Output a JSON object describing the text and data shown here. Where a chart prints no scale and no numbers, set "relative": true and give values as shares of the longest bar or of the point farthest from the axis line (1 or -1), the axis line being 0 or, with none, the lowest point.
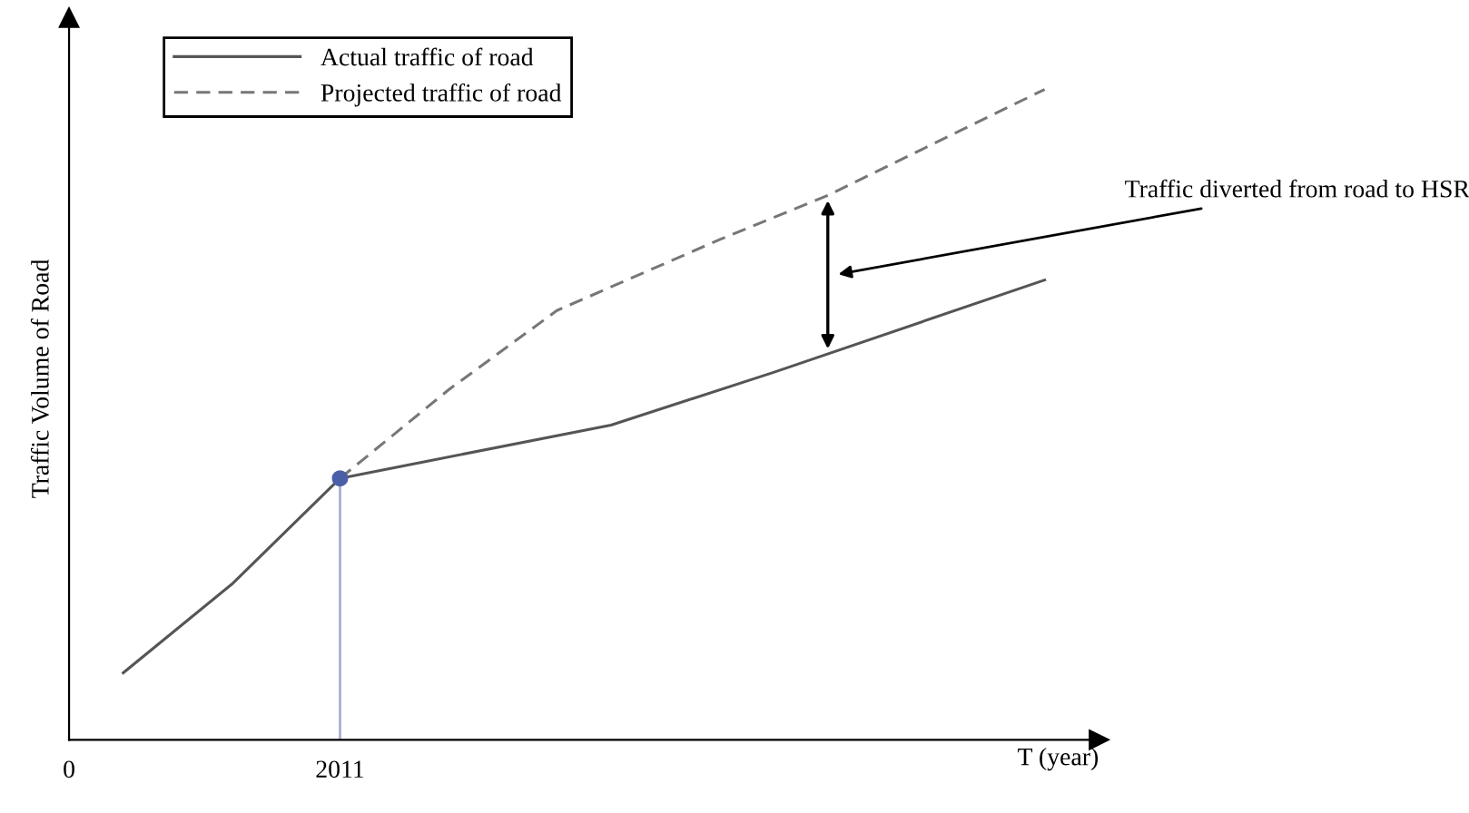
{
  "chart_data": {
    "type": "line",
    "relative": true,
    "xlabel": "T (year)",
    "ylabel": "Traffic Volume of Road",
    "categories": [
      "0",
      null,
      null,
      null,
      null,
      "2011",
      null,
      null,
      null,
      null,
      null,
      null,
      null,
      null,
      null,
      null,
      null,
      null,
      null,
      null
    ],
    "series": [
      {
        "name": "Actual traffic of road",
        "color": "#555555",
        "line_style": "solid",
        "values": [
          null,
          0.103,
          null,
          0.239,
          null,
          0.402,
          null,
          null,
          null,
          null,
          0.484,
          null,
          null,
          0.565,
          null,
          null,
          null,
          null,
          0.707,
          null
        ]
      },
      {
        "name": "Projected traffic of road",
        "color": "#777777",
        "line_style": "dashed",
        "values": [
          null,
          null,
          null,
          null,
          null,
          0.402,
          null,
          0.538,
          null,
          0.66,
          null,
          null,
          0.769,
          null,
          0.837,
          null,
          null,
          null,
          1.0,
          null
        ]
      },
      {
        "type": "lollipop",
        "color": "#4a5fa8",
        "marker": "circle",
        "values": [
          null,
          null,
          null,
          null,
          null,
          0.402,
          null,
          null,
          null,
          null,
          null,
          null,
          null,
          null,
          null,
          null,
          null,
          null,
          null,
          null
        ]
      }
    ],
    "annotations": [
      "Traffic diverted from road to HSR"
    ],
    "legend": "top left",
    "grid": false
  }
}
